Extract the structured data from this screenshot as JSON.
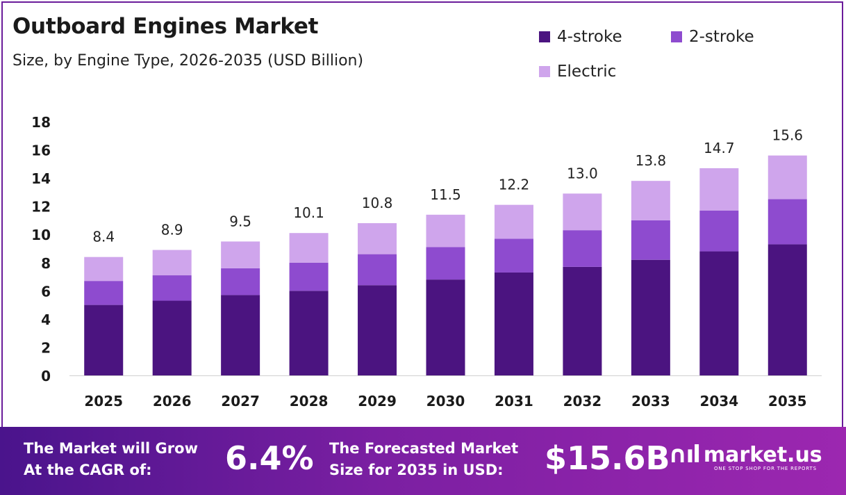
{
  "title": "Outboard Engines Market",
  "subtitle": "Size, by Engine Type, 2026-2035 (USD Billion)",
  "colors": {
    "4-stroke": "#4b1480",
    "2-stroke": "#8e4bcf",
    "Electric": "#cfa5ec",
    "border": "#6a1b9a"
  },
  "legend": [
    {
      "label": "4-stroke",
      "color": "#4b1480"
    },
    {
      "label": "2-stroke",
      "color": "#8e4bcf"
    },
    {
      "label": "Electric",
      "color": "#cfa5ec"
    }
  ],
  "chart_data": {
    "type": "bar",
    "stacked": true,
    "title": "Outboard Engines Market",
    "subtitle": "Size, by Engine Type, 2026-2035 (USD Billion)",
    "categories": [
      "2025",
      "2026",
      "2027",
      "2028",
      "2029",
      "2030",
      "2031",
      "2032",
      "2033",
      "2034",
      "2035"
    ],
    "series": [
      {
        "name": "4-stroke",
        "values": [
          5.0,
          5.3,
          5.7,
          6.0,
          6.4,
          6.8,
          7.3,
          7.7,
          8.2,
          8.8,
          9.3
        ]
      },
      {
        "name": "2-stroke",
        "values": [
          1.7,
          1.8,
          1.9,
          2.0,
          2.2,
          2.3,
          2.4,
          2.6,
          2.8,
          2.9,
          3.2
        ]
      },
      {
        "name": "Electric",
        "values": [
          1.7,
          1.8,
          1.9,
          2.1,
          2.2,
          2.3,
          2.4,
          2.6,
          2.8,
          3.0,
          3.1
        ]
      }
    ],
    "totals": [
      "8.4",
      "8.9",
      "9.5",
      "10.1",
      "10.8",
      "11.5",
      "12.2",
      "13.0",
      "13.8",
      "14.7",
      "15.6"
    ],
    "ylim": [
      0,
      18
    ],
    "yticks": [
      0,
      2,
      4,
      6,
      8,
      10,
      12,
      14,
      16,
      18
    ],
    "xlabel": "",
    "ylabel": "",
    "grid": false,
    "legend_position": "top-right"
  },
  "banner": {
    "cagr_text_line1": "The Market will Grow",
    "cagr_text_line2": "At the CAGR of:",
    "cagr_value": "6.4%",
    "forecast_text_line1": "The Forecasted Market",
    "forecast_text_line2": "Size for 2035 in USD:",
    "forecast_value": "$15.6B",
    "logo_mark": "∩ıl",
    "logo_text": "market.us",
    "logo_tagline": "ONE STOP SHOP FOR THE REPORTS"
  }
}
